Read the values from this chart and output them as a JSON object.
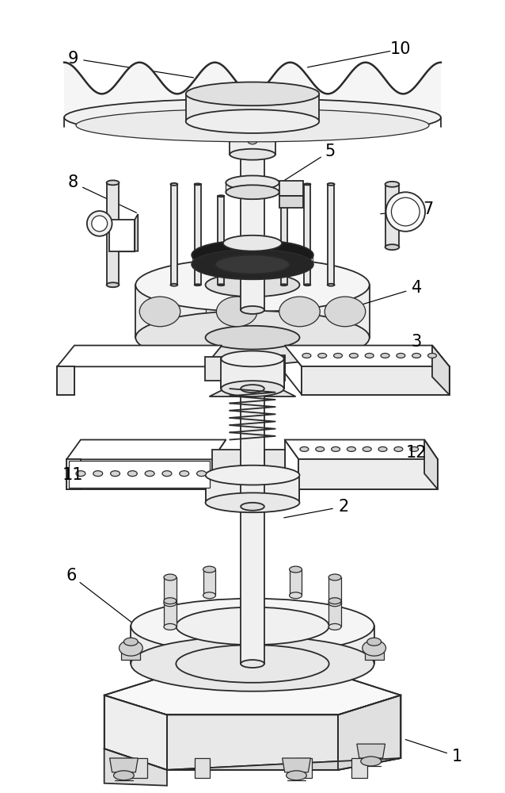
{
  "background_color": "#ffffff",
  "line_color": "#2a2a2a",
  "label_color": "#000000",
  "label_fontsize": 15,
  "figsize": [
    6.38,
    10.0
  ],
  "dpi": 100,
  "labels_data": [
    [
      1,
      580,
      958,
      510,
      935
    ],
    [
      2,
      435,
      640,
      355,
      655
    ],
    [
      3,
      528,
      430,
      460,
      458
    ],
    [
      4,
      528,
      362,
      435,
      390
    ],
    [
      5,
      418,
      188,
      355,
      228
    ],
    [
      6,
      88,
      728,
      175,
      795
    ],
    [
      7,
      543,
      262,
      478,
      268
    ],
    [
      8,
      90,
      228,
      175,
      268
    ],
    [
      9,
      90,
      70,
      248,
      95
    ],
    [
      10,
      508,
      58,
      385,
      82
    ],
    [
      11,
      90,
      600,
      160,
      612
    ],
    [
      12,
      528,
      572,
      402,
      582
    ]
  ]
}
